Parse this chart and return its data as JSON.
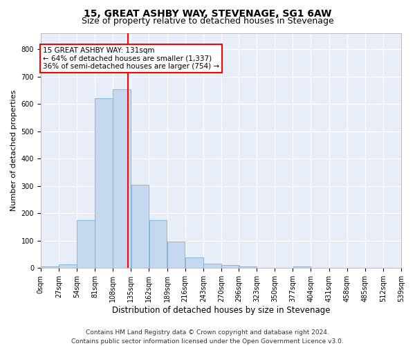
{
  "title": "15, GREAT ASHBY WAY, STEVENAGE, SG1 6AW",
  "subtitle": "Size of property relative to detached houses in Stevenage",
  "xlabel": "Distribution of detached houses by size in Stevenage",
  "ylabel": "Number of detached properties",
  "bar_color": "#c5d8f0",
  "bar_edge_color": "#7aafd4",
  "background_color": "#e8eef8",
  "grid_color": "#ffffff",
  "property_line_x": 131,
  "property_line_color": "red",
  "annotation_line1": "15 GREAT ASHBY WAY: 131sqm",
  "annotation_line2": "← 64% of detached houses are smaller (1,337)",
  "annotation_line3": "36% of semi-detached houses are larger (754) →",
  "bin_edges": [
    0,
    27,
    54,
    81,
    108,
    135,
    162,
    189,
    216,
    243,
    270,
    296,
    323,
    350,
    377,
    404,
    431,
    458,
    485,
    512,
    539
  ],
  "bin_labels": [
    "0sqm",
    "27sqm",
    "54sqm",
    "81sqm",
    "108sqm",
    "135sqm",
    "162sqm",
    "189sqm",
    "216sqm",
    "243sqm",
    "270sqm",
    "296sqm",
    "323sqm",
    "350sqm",
    "377sqm",
    "404sqm",
    "431sqm",
    "458sqm",
    "485sqm",
    "512sqm",
    "539sqm"
  ],
  "bar_heights": [
    5,
    13,
    175,
    620,
    655,
    305,
    175,
    97,
    40,
    15,
    10,
    5,
    0,
    0,
    5,
    0,
    0,
    0,
    0,
    0
  ],
  "ylim": [
    0,
    860
  ],
  "yticks": [
    0,
    100,
    200,
    300,
    400,
    500,
    600,
    700,
    800
  ],
  "footer": "Contains HM Land Registry data © Crown copyright and database right 2024.\nContains public sector information licensed under the Open Government Licence v3.0.",
  "title_fontsize": 10,
  "subtitle_fontsize": 9,
  "xlabel_fontsize": 8.5,
  "ylabel_fontsize": 8,
  "tick_fontsize": 7,
  "footer_fontsize": 6.5,
  "annotation_fontsize": 7.5
}
